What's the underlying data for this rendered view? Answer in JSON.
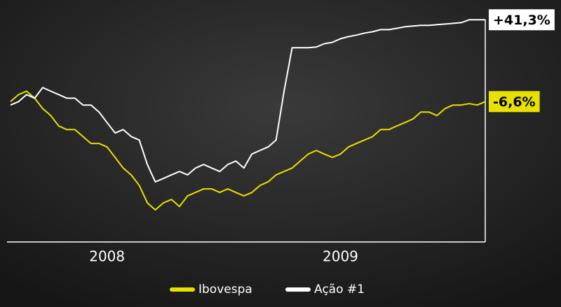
{
  "chart_data": {
    "type": "line",
    "categories": [
      null,
      null,
      null,
      null,
      null,
      null,
      null,
      null,
      null,
      null,
      null,
      null,
      "2008",
      null,
      null,
      null,
      null,
      null,
      null,
      null,
      null,
      null,
      null,
      null,
      null,
      null,
      null,
      null,
      null,
      null,
      null,
      null,
      null,
      null,
      null,
      null,
      null,
      null,
      null,
      null,
      null,
      "2009",
      null,
      null,
      null,
      null,
      null,
      null,
      null,
      null,
      null,
      null,
      null,
      null,
      null,
      null,
      null,
      null,
      null,
      null
    ],
    "ylim": [
      -90,
      50
    ],
    "series": [
      {
        "name": "Ibovespa",
        "color": "#e8e000",
        "values": [
          -6.6,
          -2.5,
          -0.5,
          -4.6,
          -10.7,
          -14.8,
          -20.9,
          -23.0,
          -23.0,
          -27.1,
          -31.1,
          -31.1,
          -33.2,
          -39.3,
          -45.5,
          -49.5,
          -55.7,
          -65.9,
          -70.0,
          -65.9,
          -63.9,
          -68.0,
          -61.8,
          -59.8,
          -57.7,
          -57.7,
          -59.8,
          -57.7,
          -59.8,
          -61.8,
          -59.8,
          -55.7,
          -53.6,
          -49.5,
          -47.5,
          -45.5,
          -41.4,
          -37.3,
          -35.2,
          -37.3,
          -39.3,
          -37.3,
          -33.2,
          -31.1,
          -29.1,
          -27.1,
          -23.0,
          -23.0,
          -20.9,
          -18.9,
          -16.8,
          -12.7,
          -12.7,
          -14.8,
          -10.7,
          -8.6,
          -8.6,
          -7.8,
          -8.6,
          -6.6
        ],
        "value_labels": [
          null,
          null,
          null,
          null,
          null,
          null,
          null,
          null,
          null,
          null,
          null,
          null,
          null,
          null,
          null,
          null,
          null,
          null,
          null,
          null,
          null,
          null,
          null,
          null,
          null,
          null,
          null,
          null,
          null,
          null,
          null,
          null,
          null,
          null,
          null,
          null,
          null,
          null,
          null,
          null,
          null,
          null,
          null,
          null,
          null,
          null,
          null,
          null,
          null,
          null,
          null,
          null,
          null,
          null,
          null,
          null,
          null,
          null,
          null,
          "-6,6%"
        ]
      },
      {
        "name": "Ação #1",
        "color": "#ffffff",
        "values": [
          -8.6,
          -6.6,
          -2.5,
          -4.6,
          1.6,
          -0.5,
          -2.5,
          -4.6,
          -4.6,
          -8.6,
          -8.6,
          -12.7,
          -18.9,
          -25.0,
          -23.0,
          -27.1,
          -29.1,
          -43.4,
          -53.6,
          -51.6,
          -49.5,
          -47.5,
          -49.5,
          -45.5,
          -43.4,
          -45.5,
          -47.5,
          -43.4,
          -41.4,
          -45.5,
          -37.3,
          -35.2,
          -33.2,
          -29.1,
          -0.5,
          24.9,
          24.9,
          24.9,
          25.3,
          27.3,
          28.1,
          30.2,
          31.4,
          32.3,
          33.5,
          34.3,
          35.5,
          35.5,
          36.3,
          37.2,
          37.6,
          38.0,
          38.0,
          38.4,
          38.8,
          39.2,
          39.6,
          41.3,
          41.3,
          41.3
        ],
        "value_labels": [
          null,
          null,
          null,
          null,
          null,
          null,
          null,
          null,
          null,
          null,
          null,
          null,
          null,
          null,
          null,
          null,
          null,
          null,
          null,
          null,
          null,
          null,
          null,
          null,
          null,
          null,
          null,
          null,
          null,
          null,
          null,
          null,
          null,
          null,
          null,
          null,
          null,
          null,
          null,
          null,
          null,
          null,
          null,
          null,
          null,
          null,
          null,
          null,
          null,
          null,
          null,
          null,
          null,
          null,
          null,
          null,
          null,
          null,
          null,
          "+41,3%"
        ]
      }
    ]
  }
}
